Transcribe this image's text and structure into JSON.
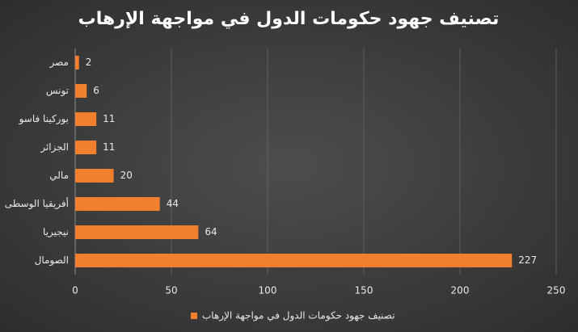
{
  "chart_data": {
    "type": "bar",
    "orientation": "horizontal",
    "title": "تصنيف جهود حكومات الدول في مواجهة الإرهاب",
    "categories": [
      "مصر",
      "تونس",
      "بوركينا فاسو",
      "الجزائر",
      "مالي",
      "أفريقيا الوسطى",
      "نيجيريا",
      "الصومال"
    ],
    "series": [
      {
        "name": "تصنيف جهود حكومات الدول في مواجهة الإرهاب",
        "color": "#f07f2e",
        "values": [
          2,
          6,
          11,
          11,
          20,
          44,
          64,
          227
        ]
      }
    ],
    "xlim": [
      0,
      250
    ],
    "xticks": [
      0,
      50,
      100,
      150,
      200,
      250
    ],
    "grid": true,
    "legend": "bottom"
  }
}
